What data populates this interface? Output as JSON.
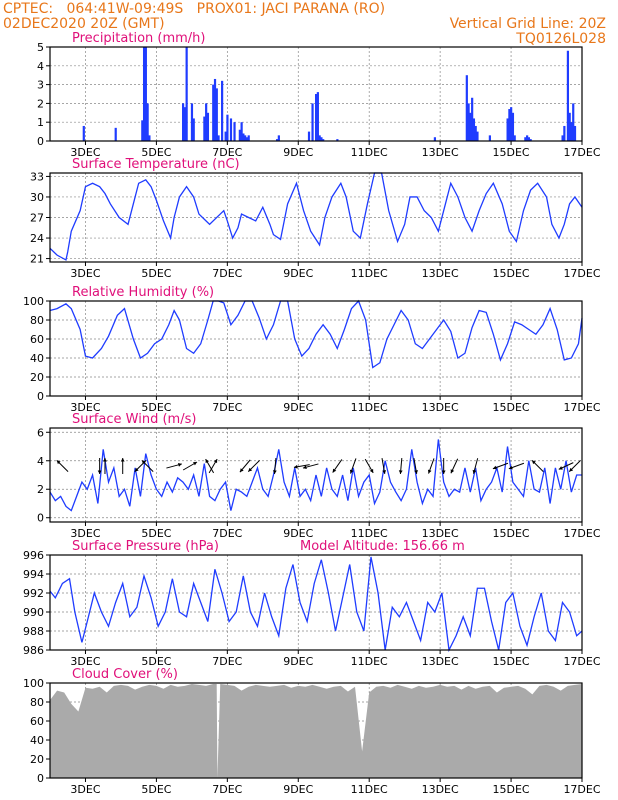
{
  "header": {
    "line1": "CPTEC:   064:41W-09:49S   PROX01: JACI PARANA (RO)",
    "line2_left": "02DEC2020 20Z (GMT)",
    "line2_right": "Vertical Grid Line: 20Z",
    "line3_right": "TQ0126L028"
  },
  "chart_data": [
    {
      "type": "bar",
      "title": "Precipitation  (mm/h)",
      "ylim": [
        0,
        5
      ],
      "yticks": [
        0,
        1,
        2,
        3,
        4,
        5
      ],
      "xlim": [
        0,
        15
      ],
      "xtick_labels": [
        "3DEC",
        "5DEC",
        "7DEC",
        "9DEC",
        "11DEC",
        "13DEC",
        "15DEC",
        "17DEC"
      ],
      "xtick_days": [
        1,
        3,
        5,
        7,
        9,
        11,
        13,
        15
      ],
      "grid": true,
      "color": "#1f3cff",
      "x": [
        0.95,
        1.85,
        2.6,
        2.65,
        2.7,
        2.75,
        2.8,
        3.75,
        3.8,
        3.85,
        4.0,
        4.05,
        4.35,
        4.4,
        4.45,
        4.6,
        4.65,
        4.7,
        4.75,
        4.85,
        4.95,
        5.0,
        5.1,
        5.2,
        5.35,
        5.4,
        5.45,
        5.5,
        5.55,
        5.6,
        6.4,
        6.45,
        7.3,
        7.4,
        7.5,
        7.55,
        7.6,
        7.65,
        7.7,
        8.1,
        10.85,
        11.75,
        11.8,
        11.85,
        11.9,
        11.95,
        12.0,
        12.05,
        12.4,
        12.9,
        12.95,
        13.0,
        13.05,
        13.1,
        13.4,
        13.45,
        13.5,
        13.55,
        14.45,
        14.5,
        14.6,
        14.65,
        14.7,
        14.75,
        14.8
      ],
      "values": [
        0.8,
        0.7,
        1.1,
        5.0,
        5.0,
        2.0,
        0.3,
        2.0,
        1.8,
        5.0,
        2.0,
        1.2,
        1.3,
        2.0,
        1.5,
        3.0,
        3.3,
        2.8,
        0.3,
        3.2,
        0.5,
        1.4,
        1.2,
        1.0,
        0.6,
        1.0,
        0.4,
        0.3,
        0.2,
        0.3,
        0.1,
        0.3,
        0.5,
        2.0,
        2.5,
        2.6,
        0.3,
        0.2,
        0.1,
        0.1,
        0.2,
        3.5,
        2.0,
        1.5,
        2.3,
        1.2,
        0.8,
        0.5,
        0.3,
        1.2,
        1.7,
        1.8,
        1.5,
        0.3,
        0.2,
        0.3,
        0.2,
        0.1,
        0.3,
        0.8,
        4.8,
        1.5,
        1.0,
        2.0,
        0.8
      ]
    },
    {
      "type": "line",
      "title": "Surface Temperature (nC)",
      "ylim": [
        20.5,
        33.5
      ],
      "yticks": [
        21,
        24,
        27,
        30,
        33
      ],
      "xlim": [
        0,
        15
      ],
      "xtick_labels": [
        "3DEC",
        "5DEC",
        "7DEC",
        "9DEC",
        "11DEC",
        "13DEC",
        "15DEC",
        "17DEC"
      ],
      "xtick_days": [
        1,
        3,
        5,
        7,
        9,
        11,
        13,
        15
      ],
      "grid": true,
      "color": "#1f3cff",
      "x": [
        0,
        0.2,
        0.45,
        0.5,
        0.6,
        0.85,
        1.0,
        1.2,
        1.4,
        1.55,
        1.7,
        1.95,
        2.2,
        2.35,
        2.5,
        2.7,
        2.85,
        3.0,
        3.2,
        3.4,
        3.5,
        3.65,
        3.85,
        4.05,
        4.2,
        4.3,
        4.5,
        4.8,
        4.9,
        5.0,
        5.15,
        5.3,
        5.4,
        5.6,
        5.8,
        6.0,
        6.2,
        6.3,
        6.5,
        6.7,
        6.95,
        7.15,
        7.35,
        7.6,
        7.75,
        7.95,
        8.2,
        8.35,
        8.55,
        8.75,
        8.95,
        9.15,
        9.35,
        9.55,
        9.8,
        10.0,
        10.15,
        10.35,
        10.55,
        10.75,
        10.95,
        11.15,
        11.3,
        11.5,
        11.7,
        11.9,
        12.1,
        12.3,
        12.5,
        12.75,
        12.95,
        13.15,
        13.35,
        13.55,
        13.75,
        14.0,
        14.15,
        14.35,
        14.5,
        14.65,
        14.8,
        15.0
      ],
      "values": [
        22.5,
        21.5,
        20.8,
        22.0,
        25.0,
        28.0,
        31.5,
        32.0,
        31.5,
        30.5,
        29.0,
        27.0,
        26.0,
        29.0,
        32.0,
        32.5,
        31.5,
        29.5,
        26.5,
        24.0,
        27.0,
        30.0,
        31.5,
        30.0,
        27.5,
        27.0,
        26.0,
        27.5,
        28.0,
        26.5,
        24.0,
        25.5,
        27.5,
        27.0,
        26.5,
        28.5,
        26.0,
        24.5,
        23.8,
        29.0,
        32.0,
        28.0,
        25.0,
        23.0,
        27.0,
        30.0,
        32.0,
        30.0,
        25.0,
        24.0,
        29.0,
        33.5,
        33.5,
        28.0,
        23.5,
        26.0,
        30.0,
        30.0,
        28.0,
        27.0,
        25.0,
        29.0,
        32.0,
        30.0,
        27.0,
        25.0,
        28.0,
        30.5,
        32.0,
        29.0,
        25.0,
        23.5,
        28.0,
        31.0,
        32.0,
        30.0,
        26.0,
        24.0,
        26.0,
        29.0,
        30.0,
        28.5
      ]
    },
    {
      "type": "line",
      "title": "Relative Humidity (%)",
      "ylim": [
        0,
        100
      ],
      "yticks": [
        0,
        20,
        40,
        60,
        80,
        100
      ],
      "xlim": [
        0,
        15
      ],
      "xtick_labels": [
        "3DEC",
        "5DEC",
        "7DEC",
        "9DEC",
        "11DEC",
        "13DEC",
        "15DEC",
        "17DEC"
      ],
      "xtick_days": [
        1,
        3,
        5,
        7,
        9,
        11,
        13,
        15
      ],
      "grid": true,
      "color": "#1f3cff",
      "x": [
        0,
        0.2,
        0.45,
        0.6,
        0.85,
        1.0,
        1.2,
        1.45,
        1.65,
        1.9,
        2.1,
        2.35,
        2.55,
        2.75,
        2.95,
        3.15,
        3.35,
        3.5,
        3.65,
        3.85,
        4.05,
        4.25,
        4.45,
        4.6,
        4.75,
        4.9,
        5.1,
        5.3,
        5.5,
        5.7,
        5.9,
        6.1,
        6.3,
        6.5,
        6.7,
        6.9,
        7.1,
        7.3,
        7.5,
        7.7,
        7.9,
        8.1,
        8.3,
        8.5,
        8.7,
        8.9,
        9.1,
        9.3,
        9.5,
        9.7,
        9.9,
        10.1,
        10.3,
        10.5,
        10.7,
        10.9,
        11.1,
        11.3,
        11.5,
        11.7,
        11.9,
        12.1,
        12.3,
        12.5,
        12.7,
        12.9,
        13.1,
        13.3,
        13.5,
        13.7,
        13.9,
        14.1,
        14.3,
        14.5,
        14.7,
        14.9,
        15.0
      ],
      "values": [
        90,
        92,
        97,
        92,
        70,
        42,
        40,
        50,
        63,
        85,
        92,
        60,
        40,
        45,
        55,
        60,
        75,
        90,
        80,
        50,
        45,
        55,
        80,
        100,
        100,
        98,
        75,
        85,
        100,
        100,
        82,
        60,
        75,
        100,
        100,
        60,
        42,
        50,
        65,
        75,
        65,
        50,
        70,
        92,
        100,
        80,
        30,
        35,
        60,
        75,
        90,
        80,
        55,
        50,
        60,
        70,
        80,
        68,
        40,
        45,
        72,
        90,
        88,
        65,
        38,
        55,
        78,
        75,
        70,
        65,
        75,
        92,
        70,
        38,
        40,
        55,
        82
      ]
    },
    {
      "type": "line",
      "title": "Surface Wind (m/s)",
      "ylim": [
        -0.3,
        6.3
      ],
      "yticks": [
        0,
        2,
        4,
        6
      ],
      "xlim": [
        0,
        15
      ],
      "xtick_labels": [
        "3DEC",
        "5DEC",
        "7DEC",
        "9DEC",
        "11DEC",
        "13DEC",
        "15DEC",
        "17DEC"
      ],
      "xtick_days": [
        1,
        3,
        5,
        7,
        9,
        11,
        13,
        15
      ],
      "grid": true,
      "color": "#1f3cff",
      "x": [
        0,
        0.15,
        0.3,
        0.45,
        0.6,
        0.75,
        0.9,
        1.05,
        1.2,
        1.35,
        1.5,
        1.65,
        1.8,
        1.95,
        2.1,
        2.25,
        2.4,
        2.55,
        2.7,
        2.85,
        3.0,
        3.15,
        3.3,
        3.45,
        3.6,
        3.75,
        3.9,
        4.05,
        4.2,
        4.35,
        4.5,
        4.65,
        4.8,
        4.95,
        5.1,
        5.25,
        5.4,
        5.55,
        5.7,
        5.85,
        6.0,
        6.15,
        6.3,
        6.45,
        6.6,
        6.75,
        6.9,
        7.05,
        7.2,
        7.35,
        7.5,
        7.65,
        7.8,
        7.95,
        8.1,
        8.25,
        8.4,
        8.55,
        8.7,
        8.85,
        9.0,
        9.15,
        9.3,
        9.45,
        9.6,
        9.75,
        9.9,
        10.05,
        10.2,
        10.35,
        10.5,
        10.65,
        10.8,
        10.95,
        11.1,
        11.25,
        11.4,
        11.55,
        11.7,
        11.85,
        12.0,
        12.15,
        12.3,
        12.45,
        12.6,
        12.75,
        12.9,
        13.05,
        13.2,
        13.35,
        13.5,
        13.65,
        13.8,
        13.95,
        14.1,
        14.25,
        14.4,
        14.55,
        14.7,
        14.85,
        15.0
      ],
      "values": [
        1.8,
        1.2,
        1.5,
        0.8,
        0.5,
        1.5,
        2.5,
        2.0,
        3.0,
        1.0,
        4.8,
        2.5,
        3.5,
        1.5,
        2.0,
        0.8,
        3.5,
        1.5,
        4.5,
        3.0,
        2.0,
        1.5,
        2.5,
        1.8,
        2.8,
        2.5,
        2.0,
        3.0,
        1.5,
        3.8,
        1.5,
        1.2,
        2.0,
        2.5,
        0.5,
        2.0,
        1.8,
        1.5,
        2.5,
        3.5,
        2.0,
        1.5,
        3.0,
        4.8,
        2.5,
        1.5,
        3.5,
        1.5,
        2.0,
        1.2,
        3.0,
        1.5,
        3.5,
        2.0,
        1.5,
        3.0,
        1.2,
        3.5,
        1.5,
        2.5,
        3.0,
        1.0,
        1.8,
        4.0,
        2.5,
        1.8,
        1.2,
        2.0,
        4.8,
        2.5,
        1.0,
        2.0,
        1.5,
        5.5,
        2.5,
        1.5,
        2.0,
        1.8,
        3.5,
        1.8,
        3.5,
        1.2,
        2.0,
        2.5,
        3.5,
        1.8,
        5.0,
        2.5,
        2.0,
        1.5,
        4.0,
        2.0,
        1.8,
        3.5,
        1.0,
        3.5,
        2.0,
        4.0,
        1.8,
        3.0,
        3.0
      ],
      "arrows": [
        {
          "day": 0.35,
          "dir_deg": 135
        },
        {
          "day": 1.4,
          "dir_deg": 270
        },
        {
          "day": 1.55,
          "dir_deg": 90
        },
        {
          "day": 2.05,
          "dir_deg": 90
        },
        {
          "day": 2.55,
          "dir_deg": 225
        },
        {
          "day": 2.75,
          "dir_deg": 135
        },
        {
          "day": 3.5,
          "dir_deg": 15
        },
        {
          "day": 3.95,
          "dir_deg": 30
        },
        {
          "day": 4.5,
          "dir_deg": 120
        },
        {
          "day": 4.6,
          "dir_deg": 60
        },
        {
          "day": 5.5,
          "dir_deg": 230
        },
        {
          "day": 5.75,
          "dir_deg": 225
        },
        {
          "day": 6.35,
          "dir_deg": 265
        },
        {
          "day": 7.1,
          "dir_deg": 190
        },
        {
          "day": 7.35,
          "dir_deg": 195
        },
        {
          "day": 8.1,
          "dir_deg": 235
        },
        {
          "day": 8.55,
          "dir_deg": 250
        },
        {
          "day": 9.0,
          "dir_deg": 300
        },
        {
          "day": 9.4,
          "dir_deg": 280
        },
        {
          "day": 9.9,
          "dir_deg": 265
        },
        {
          "day": 10.3,
          "dir_deg": 280
        },
        {
          "day": 10.75,
          "dir_deg": 250
        },
        {
          "day": 11.1,
          "dir_deg": 270
        },
        {
          "day": 11.4,
          "dir_deg": 245
        },
        {
          "day": 12.0,
          "dir_deg": 255
        },
        {
          "day": 12.7,
          "dir_deg": 200
        },
        {
          "day": 13.15,
          "dir_deg": 200
        },
        {
          "day": 13.75,
          "dir_deg": 135
        },
        {
          "day": 14.55,
          "dir_deg": 205
        },
        {
          "day": 14.8,
          "dir_deg": 225
        }
      ]
    },
    {
      "type": "line",
      "title": "Surface Pressure (hPa)",
      "annotation": "Model Altitude: 156.66 m",
      "ylim": [
        986,
        996
      ],
      "yticks": [
        986,
        988,
        990,
        992,
        994,
        996
      ],
      "xlim": [
        0,
        15
      ],
      "xtick_labels": [
        "3DEC",
        "5DEC",
        "7DEC",
        "9DEC",
        "11DEC",
        "13DEC",
        "15DEC",
        "17DEC"
      ],
      "xtick_days": [
        1,
        3,
        5,
        7,
        9,
        11,
        13,
        15
      ],
      "grid": true,
      "color": "#1f3cff",
      "x": [
        0,
        0.15,
        0.35,
        0.55,
        0.7,
        0.9,
        1.05,
        1.25,
        1.45,
        1.65,
        1.85,
        2.05,
        2.25,
        2.45,
        2.65,
        2.85,
        3.05,
        3.25,
        3.45,
        3.65,
        3.85,
        4.05,
        4.25,
        4.45,
        4.65,
        4.85,
        5.05,
        5.25,
        5.45,
        5.65,
        5.85,
        6.05,
        6.25,
        6.45,
        6.65,
        6.85,
        7.05,
        7.25,
        7.45,
        7.65,
        7.85,
        8.05,
        8.25,
        8.45,
        8.65,
        8.85,
        9.05,
        9.25,
        9.45,
        9.65,
        9.85,
        10.05,
        10.25,
        10.45,
        10.65,
        10.85,
        11.05,
        11.25,
        11.45,
        11.65,
        11.85,
        12.05,
        12.25,
        12.45,
        12.65,
        12.85,
        13.05,
        13.25,
        13.45,
        13.65,
        13.85,
        14.05,
        14.25,
        14.45,
        14.65,
        14.85,
        15.0
      ],
      "values": [
        992.2,
        991.5,
        993.0,
        993.5,
        990.0,
        986.8,
        989.0,
        992.0,
        990.0,
        988.5,
        991.0,
        993.0,
        989.5,
        990.5,
        993.8,
        991.5,
        988.5,
        990.0,
        993.5,
        990.0,
        989.5,
        993.0,
        991.0,
        989.0,
        994.5,
        992.0,
        989.0,
        990.0,
        993.8,
        990.0,
        988.5,
        992.0,
        989.5,
        987.5,
        992.5,
        995.0,
        991.0,
        989.0,
        993.0,
        995.5,
        992.0,
        988.0,
        991.5,
        995.0,
        990.0,
        988.0,
        995.8,
        992.0,
        986.0,
        990.5,
        989.5,
        991.0,
        989.0,
        987.0,
        991.0,
        990.0,
        992.0,
        986.0,
        987.5,
        989.5,
        987.5,
        992.5,
        992.5,
        989.0,
        986.0,
        991.0,
        992.0,
        988.5,
        986.5,
        989.5,
        992.0,
        988.0,
        987.0,
        991.0,
        990.0,
        987.5,
        988.0
      ]
    },
    {
      "type": "area",
      "title": "Cloud Cover (%)",
      "ylim": [
        0,
        100
      ],
      "yticks": [
        0,
        20,
        40,
        60,
        80,
        100
      ],
      "xlim": [
        0,
        15
      ],
      "xtick_labels": [
        "3DEC",
        "5DEC",
        "7DEC",
        "9DEC",
        "11DEC",
        "13DEC",
        "15DEC",
        "17DEC"
      ],
      "xtick_days": [
        1,
        3,
        5,
        7,
        9,
        11,
        13,
        15
      ],
      "grid": true,
      "color": "#aaaaaa",
      "x": [
        0,
        0.2,
        0.4,
        0.6,
        0.8,
        1.0,
        1.2,
        1.4,
        1.6,
        1.8,
        2.0,
        2.2,
        2.4,
        2.6,
        2.8,
        3.0,
        3.2,
        3.4,
        3.6,
        3.8,
        4.0,
        4.2,
        4.4,
        4.6,
        4.7,
        4.72,
        4.8,
        5.0,
        5.2,
        5.4,
        5.6,
        5.8,
        6.0,
        6.2,
        6.4,
        6.6,
        6.8,
        7.0,
        7.2,
        7.4,
        7.6,
        7.8,
        8.0,
        8.2,
        8.4,
        8.6,
        8.8,
        9.0,
        9.2,
        9.4,
        9.6,
        9.8,
        10.0,
        10.2,
        10.4,
        10.6,
        10.8,
        11.0,
        11.2,
        11.4,
        11.6,
        11.8,
        12.0,
        12.2,
        12.4,
        12.6,
        12.8,
        13.0,
        13.2,
        13.4,
        13.6,
        13.8,
        14.0,
        14.2,
        14.4,
        14.6,
        14.8,
        15.0
      ],
      "values": [
        82,
        92,
        90,
        78,
        70,
        95,
        94,
        96,
        90,
        97,
        98,
        97,
        93,
        96,
        98,
        97,
        94,
        98,
        96,
        97,
        99,
        98,
        97,
        99,
        99,
        0,
        99,
        98,
        97,
        92,
        96,
        98,
        97,
        96,
        97,
        98,
        95,
        97,
        96,
        98,
        96,
        94,
        96,
        97,
        91,
        96,
        28,
        90,
        96,
        97,
        95,
        98,
        96,
        94,
        97,
        95,
        96,
        98,
        96,
        97,
        93,
        97,
        94,
        96,
        97,
        90,
        95,
        96,
        97,
        94,
        88,
        97,
        98,
        96,
        92,
        97,
        98,
        99
      ]
    }
  ]
}
